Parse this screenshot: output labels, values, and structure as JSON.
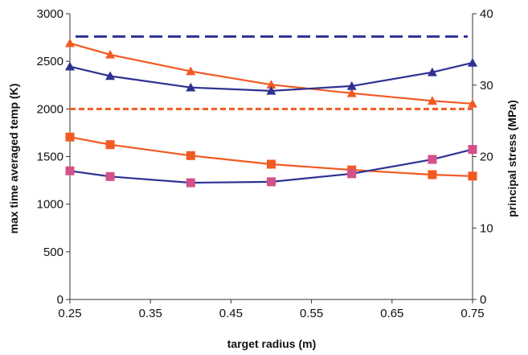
{
  "chart_data": {
    "type": "line",
    "title": "",
    "xlabel": "target radius (m)",
    "ylabel": "max time averaged temp (K)",
    "y2label": "principal stress (MPa)",
    "xlim": [
      0.25,
      0.75
    ],
    "ylim": [
      0,
      3000
    ],
    "y2lim": [
      0,
      40
    ],
    "x_ticks": [
      "0.25",
      "0.35",
      "0.45",
      "0.55",
      "0.65",
      "0.75"
    ],
    "y_ticks": [
      "0",
      "500",
      "1000",
      "1500",
      "2000",
      "2500",
      "3000"
    ],
    "y2_ticks": [
      "0",
      "10",
      "20",
      "30",
      "40"
    ],
    "grid": false,
    "legend": "none",
    "series": [
      {
        "axis": "left",
        "style": "dashed",
        "color": "#2e3192",
        "x": [
          0.25,
          0.75
        ],
        "y": [
          2760,
          2760
        ]
      },
      {
        "axis": "left",
        "style": "dashed",
        "color": "#f15a22",
        "x": [
          0.25,
          0.75
        ],
        "y": [
          2000,
          2000
        ]
      },
      {
        "axis": "left",
        "style": "line",
        "marker": "triangle",
        "color": "#f15a22",
        "marker_color": "#f15a22",
        "x": [
          0.25,
          0.3,
          0.4,
          0.5,
          0.6,
          0.7,
          0.75
        ],
        "y": [
          2690,
          2570,
          2395,
          2255,
          2165,
          2085,
          2055
        ]
      },
      {
        "axis": "left",
        "style": "line",
        "marker": "triangle",
        "color": "#2e3192",
        "marker_color": "#2e3192",
        "x": [
          0.25,
          0.3,
          0.4,
          0.5,
          0.6,
          0.7,
          0.75
        ],
        "y": [
          2445,
          2345,
          2225,
          2190,
          2240,
          2385,
          2485
        ]
      },
      {
        "axis": "left",
        "style": "line",
        "marker": "square",
        "color": "#f15a22",
        "marker_color": "#f15a22",
        "x": [
          0.25,
          0.3,
          0.4,
          0.5,
          0.6,
          0.7,
          0.75
        ],
        "y": [
          1705,
          1625,
          1510,
          1420,
          1360,
          1310,
          1295
        ]
      },
      {
        "axis": "left",
        "style": "line",
        "marker": "square",
        "color": "#2e3192",
        "marker_color": "#d4508a",
        "x": [
          0.25,
          0.3,
          0.4,
          0.5,
          0.6,
          0.7,
          0.75
        ],
        "y": [
          1350,
          1290,
          1225,
          1235,
          1320,
          1470,
          1575
        ]
      }
    ]
  }
}
